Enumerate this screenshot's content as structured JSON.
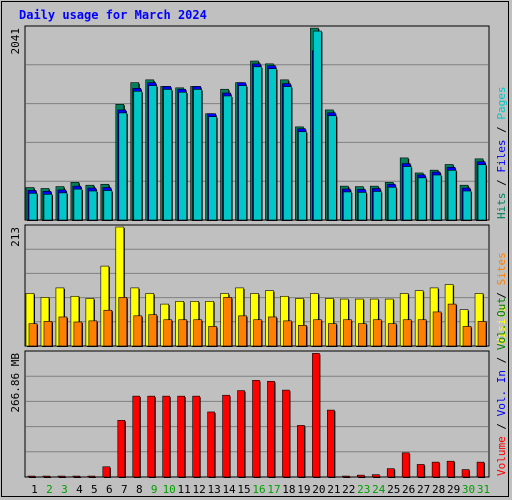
{
  "title": "Daily usage for March 2024",
  "colors": {
    "hits": "#00805c",
    "files": "#0000ff",
    "pages": "#00c8c8",
    "visits": "#ffff00",
    "sites": "#ff8000",
    "vol_out": "#008000",
    "vol_in": "#0000ff",
    "volume": "#ff0000",
    "weekend_day": "#00a000",
    "weekday_day": "#000000"
  },
  "chart_data": [
    {
      "type": "bar",
      "panel": "top",
      "axis_label": "2041",
      "ylim": [
        0,
        2041
      ],
      "categories": [
        "1",
        "2",
        "3",
        "4",
        "5",
        "6",
        "7",
        "8",
        "9",
        "10",
        "11",
        "12",
        "13",
        "14",
        "15",
        "16",
        "17",
        "18",
        "19",
        "20",
        "21",
        "22",
        "23",
        "24",
        "25",
        "26",
        "27",
        "28",
        "29",
        "30",
        "31"
      ],
      "series": [
        {
          "name": "Hits",
          "values": [
            345,
            335,
            355,
            400,
            370,
            380,
            1230,
            1460,
            1490,
            1420,
            1405,
            1420,
            1130,
            1390,
            1460,
            1690,
            1660,
            1490,
            990,
            2040,
            1170,
            360,
            355,
            360,
            400,
            660,
            500,
            530,
            590,
            370,
            650
          ]
        },
        {
          "name": "Files",
          "values": [
            315,
            305,
            320,
            360,
            340,
            345,
            1170,
            1400,
            1460,
            1420,
            1390,
            1420,
            1130,
            1350,
            1460,
            1660,
            1640,
            1450,
            970,
            1800,
            1140,
            330,
            325,
            335,
            380,
            600,
            480,
            510,
            560,
            340,
            620
          ]
        },
        {
          "name": "Pages",
          "values": [
            315,
            305,
            320,
            360,
            340,
            345,
            1170,
            1400,
            1460,
            1420,
            1390,
            1420,
            1130,
            1350,
            1460,
            1660,
            1640,
            1450,
            970,
            2040,
            1140,
            330,
            325,
            335,
            380,
            600,
            480,
            510,
            560,
            340,
            620
          ]
        }
      ],
      "legend": [
        "Hits",
        "Files",
        "Pages"
      ]
    },
    {
      "type": "bar",
      "panel": "middle",
      "axis_label": "213",
      "ylim": [
        0,
        213
      ],
      "categories": [
        "1",
        "2",
        "3",
        "4",
        "5",
        "6",
        "7",
        "8",
        "9",
        "10",
        "11",
        "12",
        "13",
        "14",
        "15",
        "16",
        "17",
        "18",
        "19",
        "20",
        "21",
        "22",
        "23",
        "24",
        "25",
        "26",
        "27",
        "28",
        "29",
        "30",
        "31"
      ],
      "series": [
        {
          "name": "Visits",
          "values": [
            94,
            87,
            104,
            89,
            85,
            143,
            213,
            104,
            94,
            75,
            80,
            80,
            80,
            94,
            104,
            94,
            99,
            89,
            85,
            94,
            85,
            84,
            84,
            84,
            84,
            94,
            99,
            104,
            110,
            65,
            94
          ]
        },
        {
          "name": "Sites",
          "values": [
            40,
            44,
            52,
            43,
            45,
            64,
            87,
            54,
            56,
            47,
            47,
            47,
            35,
            87,
            54,
            47,
            52,
            45,
            37,
            47,
            40,
            47,
            40,
            47,
            40,
            47,
            47,
            61,
            75,
            35,
            44
          ]
        }
      ],
      "legend": [
        "Visits",
        "Sites"
      ]
    },
    {
      "type": "bar",
      "panel": "bottom",
      "axis_label": "266.86 MB",
      "ylim": [
        0,
        266.86
      ],
      "categories": [
        "1",
        "2",
        "3",
        "4",
        "5",
        "6",
        "7",
        "8",
        "9",
        "10",
        "11",
        "12",
        "13",
        "14",
        "15",
        "16",
        "17",
        "18",
        "19",
        "20",
        "21",
        "22",
        "23",
        "24",
        "25",
        "26",
        "27",
        "28",
        "29",
        "30",
        "31"
      ],
      "series": [
        {
          "name": "Volume",
          "values": [
            2,
            2,
            2,
            2,
            2,
            22,
            122,
            174,
            174,
            174,
            174,
            174,
            140,
            176,
            186,
            208,
            206,
            187,
            111,
            266,
            144,
            2,
            4,
            5,
            18,
            52,
            27,
            32,
            34,
            16,
            32
          ]
        }
      ],
      "legend": [
        "Volume",
        "Vol. In",
        "Vol. Out"
      ]
    }
  ],
  "right_legend": {
    "top": [
      {
        "text": "Hits",
        "color": "#00805c"
      },
      {
        "text": " / ",
        "color": "#000000"
      },
      {
        "text": "Files",
        "color": "#0000ff"
      },
      {
        "text": " / ",
        "color": "#000000"
      },
      {
        "text": "Pages",
        "color": "#00c8c8"
      }
    ],
    "middle": [
      {
        "text": "Visits",
        "color": "#ffff00"
      },
      {
        "text": " / ",
        "color": "#000000"
      },
      {
        "text": "Sites",
        "color": "#ff8000"
      }
    ],
    "bottom": [
      {
        "text": "Volume",
        "color": "#ff0000"
      },
      {
        "text": " / ",
        "color": "#000000"
      },
      {
        "text": "Vol. In",
        "color": "#0000ff"
      },
      {
        "text": " / ",
        "color": "#000000"
      },
      {
        "text": "Vol. Out",
        "color": "#008000"
      }
    ]
  },
  "weekend_days": [
    2,
    3,
    9,
    10,
    16,
    17,
    23,
    24,
    30,
    31
  ]
}
